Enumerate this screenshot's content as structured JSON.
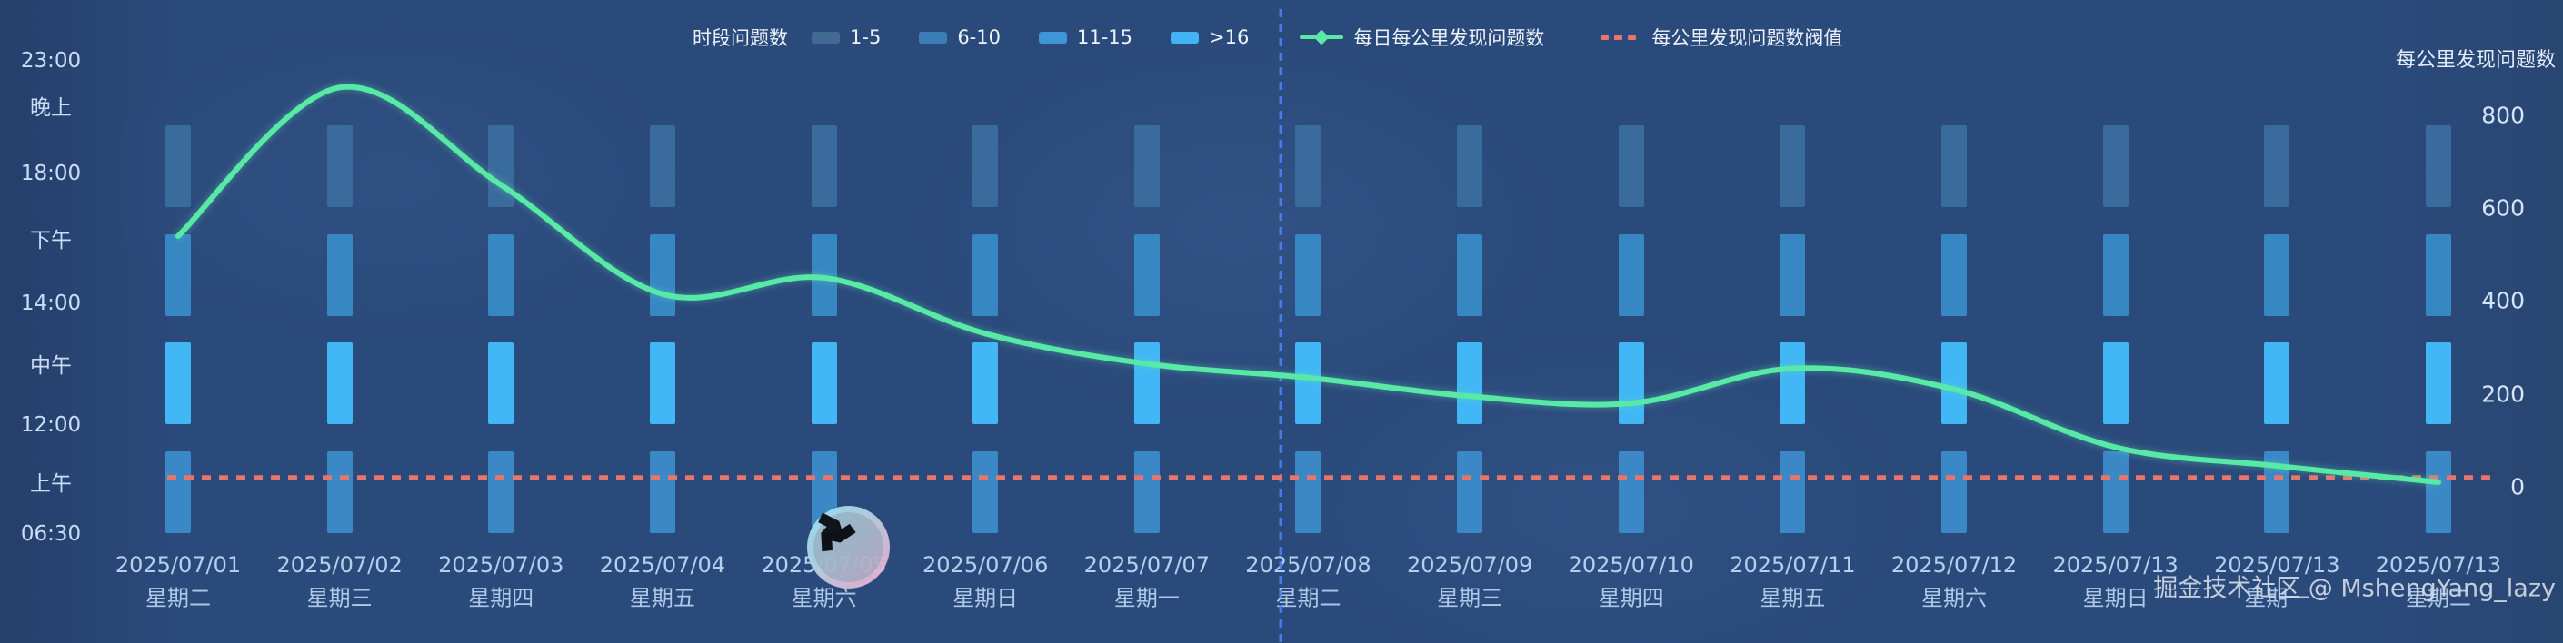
{
  "legend": {
    "bar_group_title": "时段问题数",
    "bins": [
      {
        "label": "1-5",
        "color": "#436a92"
      },
      {
        "label": "6-10",
        "color": "#3c7db6"
      },
      {
        "label": "11-15",
        "color": "#3f95d6"
      },
      {
        "label": ">16",
        "color": "#41b5f3"
      }
    ],
    "line_series_label": "每日每公里发现问题数",
    "threshold_label": "每公里发现问题数阀值"
  },
  "y_axis_left": {
    "labels": [
      "23:00",
      "晚上",
      "18:00",
      "下午",
      "14:00",
      "中午",
      "12:00",
      "上午",
      "06:30"
    ]
  },
  "y_axis_right": {
    "title": "每公里发现问题数",
    "ticks": [
      800,
      600,
      400,
      200,
      0
    ]
  },
  "columns": [
    {
      "date": "2025/07/01",
      "weekday": "星期二"
    },
    {
      "date": "2025/07/02",
      "weekday": "星期三"
    },
    {
      "date": "2025/07/03",
      "weekday": "星期四"
    },
    {
      "date": "2025/07/04",
      "weekday": "星期五"
    },
    {
      "date": "2025/07/05",
      "weekday": "星期六"
    },
    {
      "date": "2025/07/06",
      "weekday": "星期日"
    },
    {
      "date": "2025/07/07",
      "weekday": "星期一"
    },
    {
      "date": "2025/07/08",
      "weekday": "星期二"
    },
    {
      "date": "2025/07/09",
      "weekday": "星期三"
    },
    {
      "date": "2025/07/10",
      "weekday": "星期四"
    },
    {
      "date": "2025/07/11",
      "weekday": "星期五"
    },
    {
      "date": "2025/07/12",
      "weekday": "星期六"
    },
    {
      "date": "2025/07/13",
      "weekday": "星期日"
    },
    {
      "date": "2025/07/13",
      "weekday": "星期一"
    },
    {
      "date": "2025/07/13",
      "weekday": "星期二"
    }
  ],
  "chart_data": {
    "type": "mixed",
    "subtypes": [
      "time-band heat bars",
      "line",
      "threshold markline"
    ],
    "x_categories": [
      "2025/07/01",
      "2025/07/02",
      "2025/07/03",
      "2025/07/04",
      "2025/07/05",
      "2025/07/06",
      "2025/07/07",
      "2025/07/08",
      "2025/07/09",
      "2025/07/10",
      "2025/07/11",
      "2025/07/12",
      "2025/07/13",
      "2025/07/13",
      "2025/07/13"
    ],
    "time_bands": [
      {
        "name": "晚上",
        "time_range": "18:00-23:00",
        "bin_all_days": "6-10",
        "bar_color": "#396b9c"
      },
      {
        "name": "下午",
        "time_range": "14:00-18:00",
        "bin_all_days": "11-15",
        "bar_color": "#3787c3"
      },
      {
        "name": "中午",
        "time_range": "12:00-14:00",
        "bin_all_days": ">16",
        "bar_color": "#41b7f6"
      },
      {
        "name": "上午",
        "time_range": "06:30-12:00",
        "bin_all_days": "11-15",
        "bar_color": "#3a88c5"
      }
    ],
    "line_series": {
      "name": "每日每公里发现问题数",
      "color": "#58e9a6",
      "values": [
        540,
        860,
        650,
        415,
        450,
        330,
        265,
        235,
        195,
        180,
        255,
        210,
        85,
        45,
        10
      ]
    },
    "threshold": {
      "name": "每公里发现问题数阀值",
      "value": 20,
      "color": "#e8756b"
    },
    "vertical_markline": {
      "color": "#4d80f8",
      "between": "2025/07/07",
      "and": "2025/07/08"
    },
    "y_axis_right": {
      "title": "每公里发现问题数",
      "range": [
        0,
        800
      ],
      "ticks": [
        800,
        600,
        400,
        200,
        0
      ]
    },
    "grid": false,
    "legend_position": "top-center"
  },
  "watermark": {
    "text": "掘金技术社区 @ MshengYang_lazy"
  },
  "avatar_badge": {
    "ring_colors": [
      "#96e4ef",
      "#f4accf"
    ],
    "glyph": "tri-blade-logo",
    "glyph_color": "#0d0f12"
  }
}
